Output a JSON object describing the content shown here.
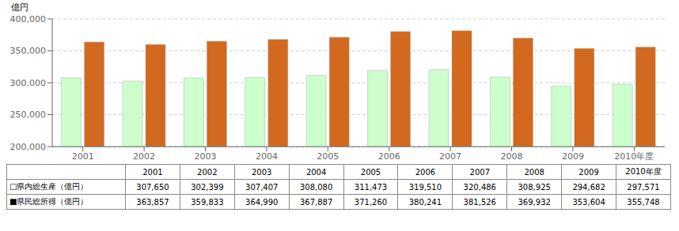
{
  "chart_data": {
    "type": "bar",
    "y_label": "億円",
    "categories": [
      "2001",
      "2002",
      "2003",
      "2004",
      "2005",
      "2006",
      "2007",
      "2008",
      "2009",
      "2010年度"
    ],
    "series": [
      {
        "name": "□県内総生産（億円）",
        "color": "#ccffcc",
        "values": [
          307650,
          302399,
          307407,
          308080,
          311473,
          319510,
          320486,
          308925,
          294682,
          297571
        ],
        "value_labels": [
          "307,650",
          "302,399",
          "307,407",
          "308,080",
          "311,473",
          "319,510",
          "320,486",
          "308,925",
          "294,682",
          "297,571"
        ]
      },
      {
        "name": "■県民総所得（億円）",
        "color": "#d2691e",
        "values": [
          363857,
          359833,
          364990,
          367887,
          371260,
          380241,
          381526,
          369932,
          353604,
          355748
        ],
        "value_labels": [
          "363,857",
          "359,833",
          "364,990",
          "367,887",
          "371,260",
          "380,241",
          "381,526",
          "369,932",
          "353,604",
          "355,748"
        ]
      }
    ],
    "ylim": [
      200000,
      400000
    ],
    "yticks": [
      {
        "value": 200000,
        "label": "200,000"
      },
      {
        "value": 250000,
        "label": "250,000"
      },
      {
        "value": 300000,
        "label": "300,000"
      },
      {
        "value": 350000,
        "label": "350,000"
      },
      {
        "value": 400000,
        "label": "400,000"
      }
    ],
    "grid": true
  }
}
